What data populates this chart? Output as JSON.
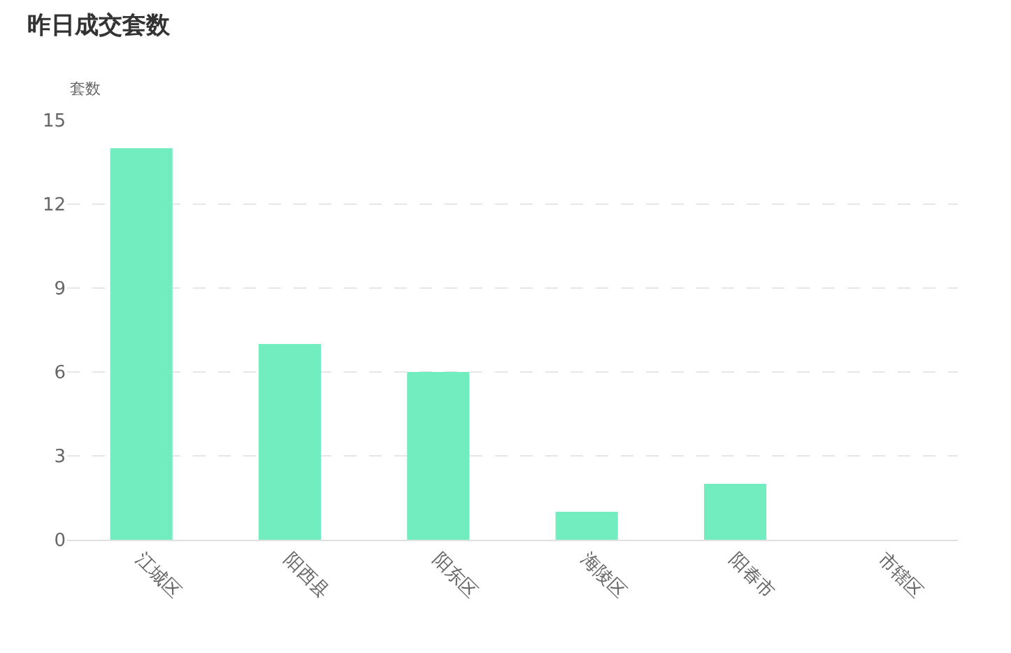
{
  "chart_data": {
    "type": "bar",
    "title": "昨日成交套数",
    "ylabel": "套数",
    "categories": [
      "江城区",
      "阳西县",
      "阳东区",
      "海陵区",
      "阳春市",
      "市辖区"
    ],
    "values": [
      14,
      7,
      6,
      1,
      2,
      0
    ],
    "color": "#72edbf",
    "ylim": [
      0,
      15
    ],
    "yticks": [
      0,
      3,
      6,
      9,
      12,
      15
    ],
    "grid": "y",
    "legend": false
  }
}
